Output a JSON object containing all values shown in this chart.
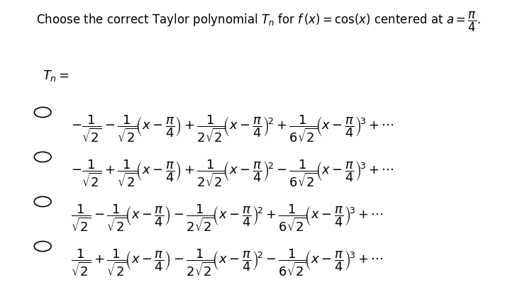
{
  "title": "Choose the correct Taylor polynomial $T_n$ for $f\\,(x) = \\cos(x)$ centered at $a = \\dfrac{\\pi}{4}$.",
  "tn_label": "$T_n = $",
  "options": [
    "$-\\dfrac{1}{\\sqrt{2}} - \\dfrac{1}{\\sqrt{2}}\\!\\left(x - \\dfrac{\\pi}{4}\\right) + \\dfrac{1}{2\\sqrt{2}}\\!\\left(x - \\dfrac{\\pi}{4}\\right)^{\\!2} + \\dfrac{1}{6\\sqrt{2}}\\!\\left(x - \\dfrac{\\pi}{4}\\right)^{\\!3} + \\cdots$",
    "$-\\dfrac{1}{\\sqrt{2}} + \\dfrac{1}{\\sqrt{2}}\\!\\left(x - \\dfrac{\\pi}{4}\\right) + \\dfrac{1}{2\\sqrt{2}}\\!\\left(x - \\dfrac{\\pi}{4}\\right)^{\\!2} - \\dfrac{1}{6\\sqrt{2}}\\!\\left(x - \\dfrac{\\pi}{4}\\right)^{\\!3} + \\cdots$",
    "$\\dfrac{1}{\\sqrt{2}} - \\dfrac{1}{\\sqrt{2}}\\!\\left(x - \\dfrac{\\pi}{4}\\right) - \\dfrac{1}{2\\sqrt{2}}\\!\\left(x - \\dfrac{\\pi}{4}\\right)^{\\!2} + \\dfrac{1}{6\\sqrt{2}}\\!\\left(x - \\dfrac{\\pi}{4}\\right)^{\\!3} + \\cdots$",
    "$\\dfrac{1}{\\sqrt{2}} + \\dfrac{1}{\\sqrt{2}}\\!\\left(x - \\dfrac{\\pi}{4}\\right) - \\dfrac{1}{2\\sqrt{2}}\\!\\left(x - \\dfrac{\\pi}{4}\\right)^{\\!2} - \\dfrac{1}{6\\sqrt{2}}\\!\\left(x - \\dfrac{\\pi}{4}\\right)^{\\!3} + \\cdots$"
  ],
  "background_color": "#ffffff",
  "text_color": "#000000",
  "fontsize_title": 12,
  "fontsize_options": 13,
  "fontsize_tn": 13
}
